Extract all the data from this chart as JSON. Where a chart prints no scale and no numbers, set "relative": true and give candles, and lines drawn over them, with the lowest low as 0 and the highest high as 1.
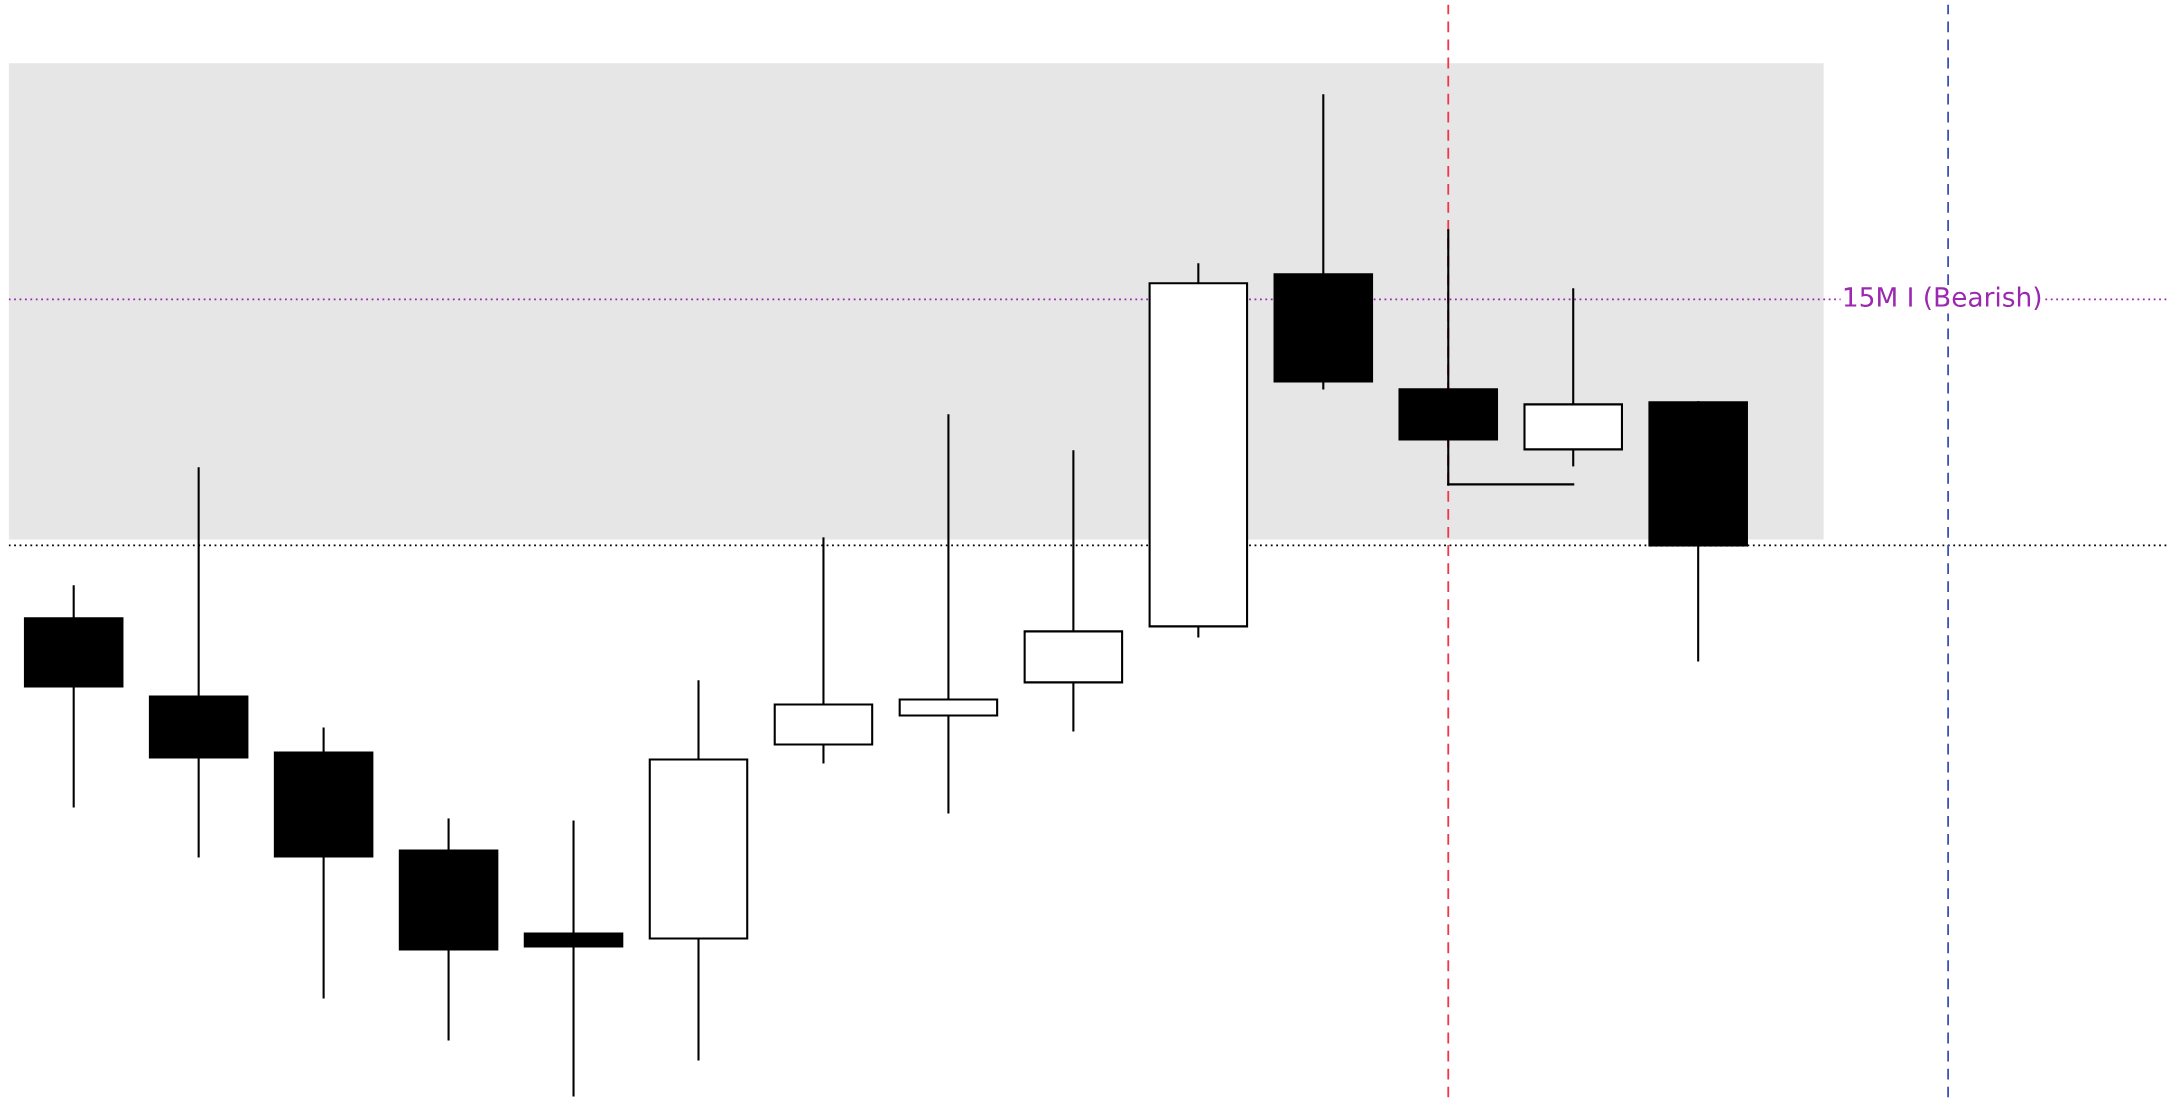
{
  "chart_data": {
    "type": "candlestick",
    "relative": true,
    "categories": [
      null,
      null,
      null,
      null,
      null,
      null,
      null,
      null,
      null,
      null,
      null,
      null,
      null,
      null
    ],
    "ohlc": [
      [
        0.477,
        0.509,
        0.289,
        0.409
      ],
      [
        0.399,
        0.627,
        0.239,
        0.338
      ],
      [
        0.343,
        0.367,
        0.098,
        0.239
      ],
      [
        0.245,
        0.276,
        0.056,
        0.146
      ],
      [
        0.162,
        0.274,
        0.0,
        0.149
      ],
      [
        0.157,
        0.414,
        0.036,
        0.336
      ],
      [
        0.351,
        0.557,
        0.333,
        0.391
      ],
      [
        0.38,
        0.68,
        0.283,
        0.396
      ],
      [
        0.413,
        0.644,
        0.365,
        0.464
      ],
      [
        0.469,
        0.831,
        0.459,
        0.812
      ],
      [
        0.821,
        1.0,
        0.707,
        0.714
      ],
      [
        0.706,
        0.865,
        0.611,
        0.656
      ],
      [
        0.646,
        0.806,
        0.63,
        0.691
      ],
      [
        0.693,
        0.693,
        0.435,
        0.55
      ]
    ],
    "colors": [
      "#000000",
      "#000000",
      "#000000",
      "#000000",
      "#000000",
      "#ffffff",
      "#ffffff",
      "#ffffff",
      "#ffffff",
      "#ffffff",
      "#000000",
      "#000000",
      "#ffffff",
      "#000000"
    ],
    "series": [
      {
        "type": "line",
        "color": "#000000",
        "values": [
          null,
          null,
          null,
          null,
          null,
          null,
          null,
          null,
          null,
          null,
          null,
          0.611,
          0.611,
          null
        ]
      }
    ],
    "bands": [
      {
        "axis": "y",
        "from": 0.556,
        "to": 1.032,
        "label": null,
        "color": "#e6e6e6"
      }
    ],
    "ref_lines": [
      {
        "axis": "y",
        "value": 0.796,
        "label": "15M I (Bearish)",
        "color": "#9c27b0",
        "line_style": "dotted"
      },
      {
        "axis": "y",
        "value": 0.55,
        "label": null,
        "color": "#000000",
        "line_style": "dotted"
      }
    ],
    "legend": false
  }
}
